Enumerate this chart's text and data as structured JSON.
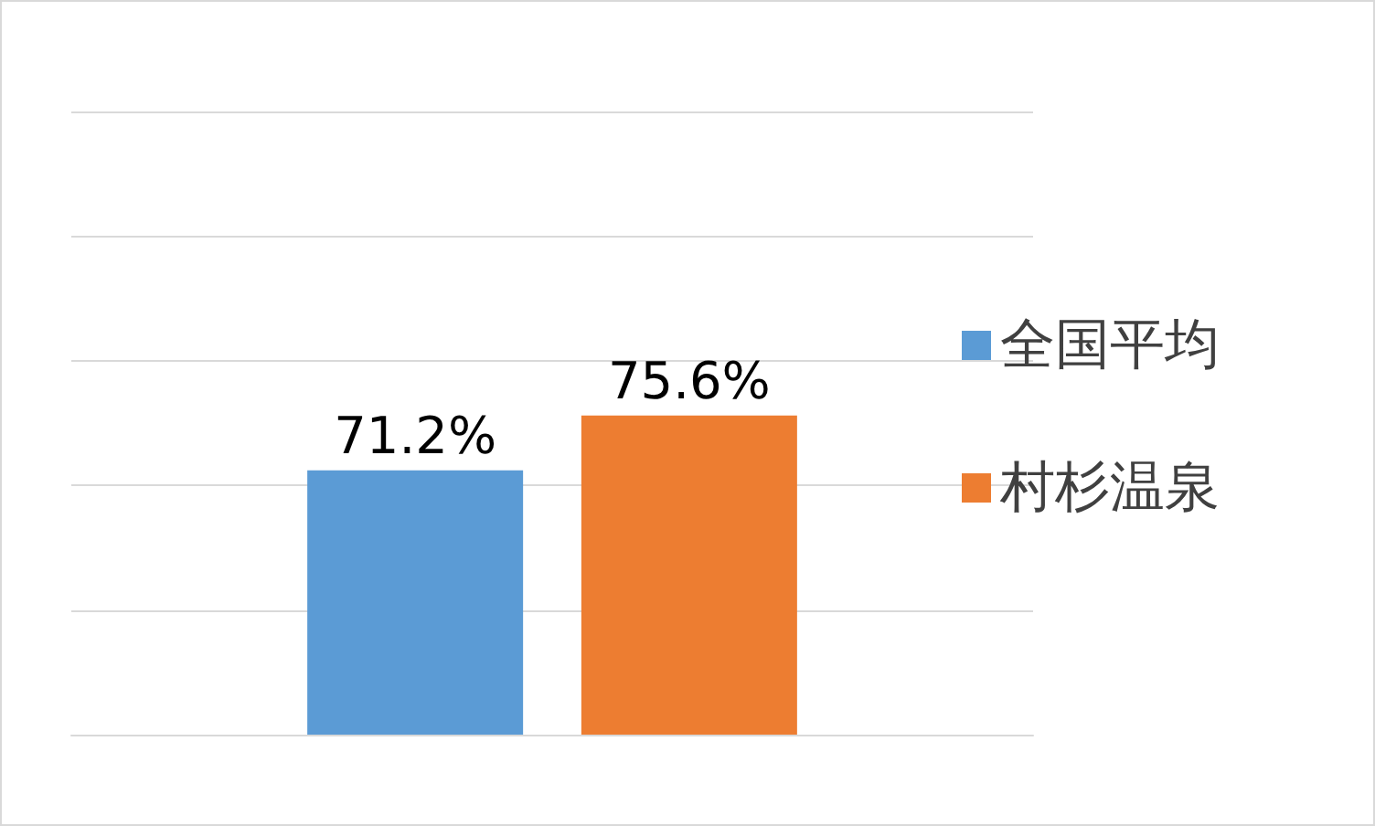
{
  "chart_data": {
    "type": "bar",
    "categories": [
      null
    ],
    "series": [
      {
        "name": "全国平均",
        "color": "#5b9bd5",
        "values": [
          71.2
        ],
        "value_labels": [
          "71.2%"
        ]
      },
      {
        "name": "村杉温泉",
        "color": "#ed7d31",
        "values": [
          75.6
        ],
        "value_labels": [
          "75.6%"
        ]
      }
    ],
    "ylim": [
      50,
      100
    ],
    "yticks": [
      {
        "value": 50,
        "label": null
      },
      {
        "value": 60,
        "label": null
      },
      {
        "value": 70,
        "label": null
      },
      {
        "value": 80,
        "label": null
      },
      {
        "value": 90,
        "label": null
      },
      {
        "value": 100,
        "label": null
      }
    ],
    "grid": "y",
    "legend": "right"
  }
}
